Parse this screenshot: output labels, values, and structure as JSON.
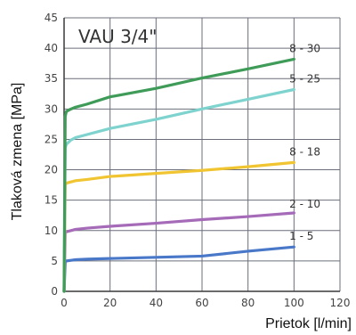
{
  "chart_data": {
    "type": "line",
    "title": "VAU 3/4\"",
    "xlabel": "Prietok [l/min]",
    "ylabel": "Tlaková zmena [MPa]",
    "xlim": [
      0,
      120
    ],
    "ylim": [
      0,
      45
    ],
    "xticks": [
      0,
      20,
      40,
      60,
      80,
      100,
      120
    ],
    "yticks": [
      0,
      5,
      10,
      15,
      20,
      25,
      30,
      35,
      40,
      45
    ],
    "grid": true,
    "colors": {
      "axis": "#3a3a3a",
      "grid": "#6b6f7a",
      "text": "#333333"
    },
    "series": [
      {
        "name": "1 - 5",
        "color": "#4a78c9",
        "x": [
          0,
          0.5,
          1,
          3,
          5,
          10,
          20,
          40,
          60,
          80,
          100
        ],
        "y": [
          0,
          4.8,
          5.0,
          5.1,
          5.2,
          5.3,
          5.4,
          5.6,
          5.8,
          6.6,
          7.3
        ]
      },
      {
        "name": "2 - 10",
        "color": "#a56bb8",
        "x": [
          0,
          0.5,
          1,
          3,
          5,
          10,
          20,
          40,
          60,
          80,
          100
        ],
        "y": [
          0,
          9.6,
          9.8,
          10.0,
          10.2,
          10.4,
          10.7,
          11.2,
          11.8,
          12.3,
          12.9
        ]
      },
      {
        "name": "8 - 18",
        "color": "#f0c531",
        "x": [
          0,
          0.5,
          1,
          3,
          5,
          10,
          20,
          40,
          60,
          80,
          100
        ],
        "y": [
          0,
          17.5,
          17.8,
          18.0,
          18.2,
          18.4,
          18.9,
          19.4,
          19.9,
          20.5,
          21.2
        ]
      },
      {
        "name": "5 - 25",
        "color": "#7fd3cf",
        "x": [
          0,
          0.5,
          1,
          3,
          5,
          10,
          20,
          40,
          60,
          80,
          100
        ],
        "y": [
          0,
          23.6,
          24.2,
          24.9,
          25.3,
          25.8,
          26.8,
          28.3,
          30.0,
          31.6,
          33.2
        ]
      },
      {
        "name": "8 - 30",
        "color": "#3f9b58",
        "x": [
          0,
          0.5,
          1,
          3,
          5,
          10,
          20,
          40,
          60,
          80,
          100
        ],
        "y": [
          0,
          28.8,
          29.6,
          30.0,
          30.3,
          30.8,
          32.0,
          33.4,
          35.1,
          36.6,
          38.2
        ]
      }
    ]
  }
}
